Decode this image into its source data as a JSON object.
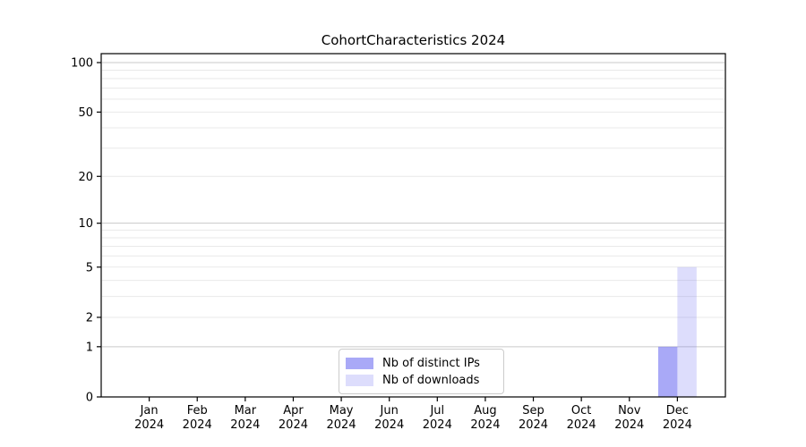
{
  "chart_data": {
    "type": "bar",
    "title": "CohortCharacteristics 2024",
    "categories": [
      "Jan",
      "Feb",
      "Mar",
      "Apr",
      "May",
      "Jun",
      "Jul",
      "Aug",
      "Sep",
      "Oct",
      "Nov",
      "Dec"
    ],
    "category_year_label": "2024",
    "series": [
      {
        "name": "Nb of distinct IPs",
        "color": "rgba(98,98,240,0.55)",
        "values": [
          0,
          0,
          0,
          0,
          0,
          0,
          0,
          0,
          0,
          0,
          0,
          1
        ]
      },
      {
        "name": "Nb of downloads",
        "color": "rgba(98,98,240,0.22)",
        "values": [
          0,
          0,
          0,
          0,
          0,
          0,
          0,
          0,
          0,
          0,
          0,
          5
        ]
      }
    ],
    "y_axis": {
      "scale": "log1p",
      "tick_labels": [
        100,
        50,
        20,
        10,
        5,
        2,
        1,
        0
      ],
      "major_gridlines": [
        100,
        10,
        1
      ],
      "minor_gridlines": [
        90,
        80,
        70,
        60,
        50,
        40,
        30,
        20,
        9,
        8,
        7,
        6,
        5,
        4,
        3,
        2
      ],
      "range_max": 113
    },
    "xlabel": "",
    "ylabel": "",
    "grid": true,
    "legend_position": "lower-center"
  },
  "style": {
    "axis_color": "#000000",
    "text_color": "#000000",
    "major_grid_color": "#c9c9c9",
    "minor_grid_color": "#e9e9e9",
    "legend_border_color": "#cccccc",
    "background": "#ffffff"
  }
}
